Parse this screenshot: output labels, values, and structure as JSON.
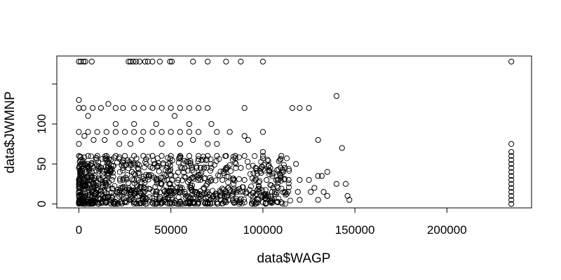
{
  "chart_data": {
    "type": "scatter",
    "title": "",
    "xlabel": "data$WAGP",
    "ylabel": "data$JWMNP",
    "xlim": [
      -12000,
      246000
    ],
    "ylim": [
      -5,
      185
    ],
    "xticks": [
      0,
      50000,
      100000,
      150000,
      200000
    ],
    "xtick_labels": [
      "0",
      "50000",
      "100000",
      "150000",
      "200000"
    ],
    "yticks": [
      0,
      50,
      100
    ],
    "ytick_labels": [
      "0",
      "50",
      "100"
    ],
    "yticks_unlabeled": [
      150
    ],
    "marker": "open-circle",
    "marker_color": "#000000",
    "grid": false,
    "legend": "none",
    "series": [
      {
        "name": "observations",
        "points": [
          [
            0,
            178
          ],
          [
            1000,
            178
          ],
          [
            2500,
            178
          ],
          [
            3500,
            178
          ],
          [
            7000,
            178
          ],
          [
            27000,
            178
          ],
          [
            28000,
            178
          ],
          [
            29500,
            178
          ],
          [
            31000,
            178
          ],
          [
            33000,
            178
          ],
          [
            36000,
            178
          ],
          [
            37500,
            178
          ],
          [
            40000,
            178
          ],
          [
            44000,
            178
          ],
          [
            49500,
            178
          ],
          [
            50500,
            178
          ],
          [
            62000,
            178
          ],
          [
            70000,
            178
          ],
          [
            80000,
            178
          ],
          [
            88000,
            178
          ],
          [
            100000,
            178
          ],
          [
            235000,
            178
          ],
          [
            0,
            130
          ],
          [
            0,
            120
          ],
          [
            2500,
            120
          ],
          [
            7500,
            120
          ],
          [
            12000,
            120
          ],
          [
            16000,
            125
          ],
          [
            20000,
            120
          ],
          [
            24000,
            120
          ],
          [
            30000,
            120
          ],
          [
            35000,
            120
          ],
          [
            40000,
            120
          ],
          [
            45000,
            120
          ],
          [
            50000,
            120
          ],
          [
            55000,
            120
          ],
          [
            60000,
            120
          ],
          [
            65000,
            120
          ],
          [
            70000,
            120
          ],
          [
            90000,
            120
          ],
          [
            116000,
            120
          ],
          [
            120000,
            120
          ],
          [
            125000,
            120
          ],
          [
            140000,
            135
          ],
          [
            5000,
            110
          ],
          [
            20000,
            100
          ],
          [
            30000,
            100
          ],
          [
            42000,
            100
          ],
          [
            52000,
            110
          ],
          [
            60000,
            100
          ],
          [
            72000,
            100
          ],
          [
            0,
            90
          ],
          [
            5000,
            90
          ],
          [
            10000,
            90
          ],
          [
            15000,
            90
          ],
          [
            20000,
            90
          ],
          [
            25000,
            90
          ],
          [
            30000,
            90
          ],
          [
            35000,
            90
          ],
          [
            40000,
            90
          ],
          [
            45000,
            90
          ],
          [
            50000,
            90
          ],
          [
            55000,
            90
          ],
          [
            60000,
            90
          ],
          [
            65000,
            90
          ],
          [
            75000,
            90
          ],
          [
            82000,
            90
          ],
          [
            100000,
            90
          ],
          [
            0,
            75
          ],
          [
            3000,
            85
          ],
          [
            8000,
            80
          ],
          [
            14000,
            80
          ],
          [
            22000,
            75
          ],
          [
            28000,
            75
          ],
          [
            34000,
            80
          ],
          [
            45000,
            75
          ],
          [
            55000,
            75
          ],
          [
            62000,
            80
          ],
          [
            70000,
            75
          ],
          [
            75000,
            75
          ],
          [
            90000,
            85
          ],
          [
            92000,
            80
          ],
          [
            100000,
            65
          ],
          [
            130000,
            80
          ],
          [
            143000,
            70
          ],
          [
            0,
            60
          ],
          [
            5000,
            60
          ],
          [
            10000,
            60
          ],
          [
            15000,
            60
          ],
          [
            20000,
            60
          ],
          [
            25000,
            60
          ],
          [
            30000,
            60
          ],
          [
            35000,
            60
          ],
          [
            40000,
            60
          ],
          [
            45000,
            60
          ],
          [
            50000,
            60
          ],
          [
            55000,
            60
          ],
          [
            60000,
            60
          ],
          [
            65000,
            60
          ],
          [
            70000,
            60
          ],
          [
            75000,
            60
          ],
          [
            80000,
            60
          ],
          [
            85000,
            60
          ],
          [
            90000,
            60
          ],
          [
            100000,
            60
          ],
          [
            110000,
            60
          ],
          [
            0,
            45
          ],
          [
            8000,
            45
          ],
          [
            16000,
            45
          ],
          [
            24000,
            45
          ],
          [
            32000,
            45
          ],
          [
            40000,
            45
          ],
          [
            48000,
            45
          ],
          [
            56000,
            45
          ],
          [
            64000,
            45
          ],
          [
            72000,
            45
          ],
          [
            80000,
            45
          ],
          [
            88000,
            45
          ],
          [
            96000,
            45
          ],
          [
            104000,
            45
          ],
          [
            112000,
            45
          ],
          [
            118000,
            50
          ],
          [
            125000,
            30
          ],
          [
            130000,
            35
          ],
          [
            132000,
            35
          ],
          [
            135000,
            40
          ],
          [
            140000,
            25
          ],
          [
            145000,
            25
          ],
          [
            146000,
            10
          ],
          [
            147000,
            5
          ],
          [
            135000,
            10
          ],
          [
            0,
            30
          ],
          [
            6000,
            30
          ],
          [
            12000,
            30
          ],
          [
            18000,
            30
          ],
          [
            24000,
            30
          ],
          [
            30000,
            30
          ],
          [
            36000,
            30
          ],
          [
            42000,
            30
          ],
          [
            48000,
            30
          ],
          [
            54000,
            30
          ],
          [
            60000,
            30
          ],
          [
            66000,
            30
          ],
          [
            72000,
            30
          ],
          [
            78000,
            30
          ],
          [
            84000,
            30
          ],
          [
            90000,
            30
          ],
          [
            96000,
            30
          ],
          [
            102000,
            30
          ],
          [
            108000,
            30
          ],
          [
            114000,
            30
          ],
          [
            120000,
            30
          ],
          [
            128000,
            20
          ],
          [
            0,
            15
          ],
          [
            7000,
            15
          ],
          [
            14000,
            15
          ],
          [
            21000,
            15
          ],
          [
            28000,
            15
          ],
          [
            35000,
            15
          ],
          [
            42000,
            15
          ],
          [
            49000,
            15
          ],
          [
            56000,
            15
          ],
          [
            63000,
            15
          ],
          [
            70000,
            15
          ],
          [
            77000,
            15
          ],
          [
            84000,
            15
          ],
          [
            91000,
            15
          ],
          [
            98000,
            15
          ],
          [
            105000,
            15
          ],
          [
            112000,
            15
          ],
          [
            119000,
            15
          ],
          [
            126000,
            15
          ],
          [
            133000,
            15
          ],
          [
            0,
            2
          ],
          [
            5000,
            2
          ],
          [
            10000,
            2
          ],
          [
            15000,
            2
          ],
          [
            20000,
            2
          ],
          [
            25000,
            2
          ],
          [
            30000,
            2
          ],
          [
            35000,
            2
          ],
          [
            40000,
            2
          ],
          [
            45000,
            2
          ],
          [
            50000,
            2
          ],
          [
            55000,
            2
          ],
          [
            60000,
            2
          ],
          [
            65000,
            2
          ],
          [
            70000,
            2
          ],
          [
            75000,
            2
          ],
          [
            80000,
            2
          ],
          [
            85000,
            2
          ],
          [
            90000,
            2
          ],
          [
            95000,
            2
          ],
          [
            100000,
            2
          ],
          [
            105000,
            2
          ],
          [
            110000,
            2
          ],
          [
            120000,
            5
          ],
          [
            130000,
            5
          ],
          [
            235000,
            75
          ],
          [
            235000,
            65
          ],
          [
            235000,
            60
          ],
          [
            235000,
            55
          ],
          [
            235000,
            50
          ],
          [
            235000,
            45
          ],
          [
            235000,
            40
          ],
          [
            235000,
            35
          ],
          [
            235000,
            30
          ],
          [
            235000,
            25
          ],
          [
            235000,
            20
          ],
          [
            235000,
            15
          ],
          [
            235000,
            10
          ],
          [
            235000,
            5
          ],
          [
            235000,
            0
          ]
        ]
      }
    ]
  }
}
